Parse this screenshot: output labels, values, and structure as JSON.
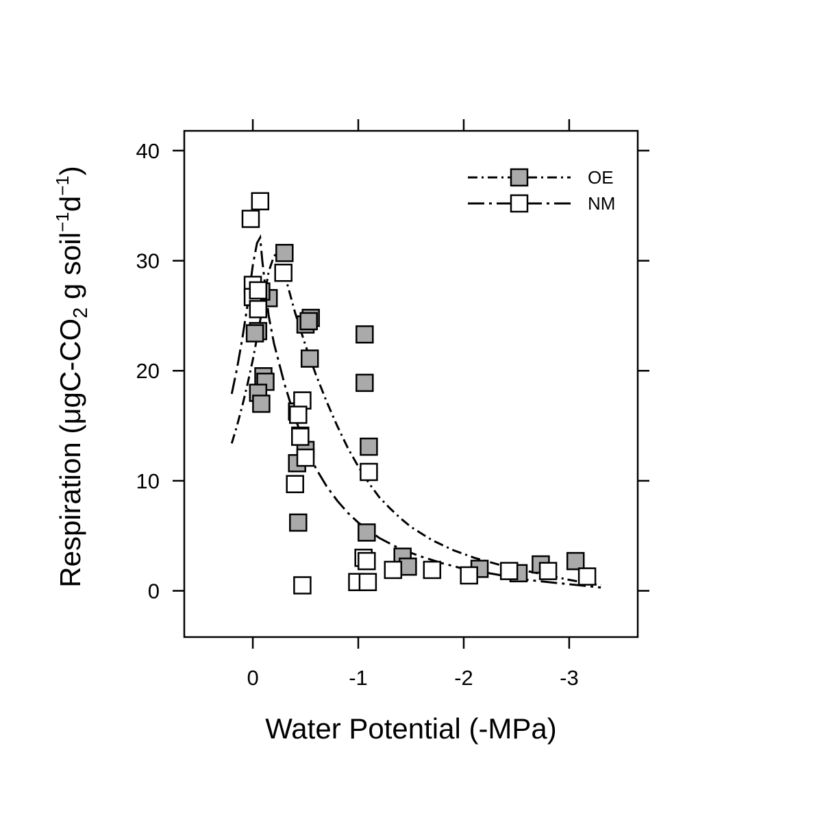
{
  "chart_data": {
    "type": "scatter",
    "xlabel": "Water Potential (-MPa)",
    "ylabel": {
      "prefix": "Respiration (μgC-CO",
      "sub": "2",
      "middle": " g soil",
      "sup1": "−1",
      "d": "d",
      "sup2": "−1",
      "suffix": ")"
    },
    "xlim": [
      0.65,
      -3.65
    ],
    "ylim": [
      -4.2,
      41.8
    ],
    "x_ticks": [
      0,
      -1,
      -2,
      -3
    ],
    "x_tick_labels": [
      "0",
      "-1",
      "-2",
      "-3"
    ],
    "y_ticks": [
      0,
      10,
      20,
      30,
      40
    ],
    "y_tick_labels": [
      "0",
      "10",
      "20",
      "30",
      "40"
    ],
    "grid": false,
    "legend_position": "top-right",
    "series": [
      {
        "name": "OE",
        "marker": "filled-square",
        "fill": "#aaaaaa",
        "points": [
          [
            -0.3,
            30.7
          ],
          [
            -0.15,
            26.6
          ],
          [
            -0.08,
            27.2
          ],
          [
            -0.05,
            23.6
          ],
          [
            -0.02,
            23.4
          ],
          [
            -0.1,
            19.5
          ],
          [
            -0.12,
            19.0
          ],
          [
            -0.05,
            18.0
          ],
          [
            -0.08,
            17.0
          ],
          [
            -0.5,
            24.2
          ],
          [
            -0.55,
            24.8
          ],
          [
            -0.53,
            24.5
          ],
          [
            -0.54,
            21.1
          ],
          [
            -0.42,
            16.3
          ],
          [
            -0.45,
            14.1
          ],
          [
            -0.5,
            12.8
          ],
          [
            -0.42,
            11.6
          ],
          [
            -0.43,
            6.2
          ],
          [
            -1.06,
            23.3
          ],
          [
            -1.06,
            18.9
          ],
          [
            -1.1,
            13.1
          ],
          [
            -1.08,
            5.3
          ],
          [
            -1.42,
            3.1
          ],
          [
            -1.47,
            2.2
          ],
          [
            -2.15,
            2.0
          ],
          [
            -2.52,
            1.6
          ],
          [
            -2.73,
            2.4
          ],
          [
            -3.06,
            2.7
          ]
        ]
      },
      {
        "name": "NM",
        "marker": "open-square",
        "fill": "#ffffff",
        "points": [
          [
            -0.07,
            35.4
          ],
          [
            0.02,
            33.8
          ],
          [
            -0.29,
            28.9
          ],
          [
            0.0,
            27.8
          ],
          [
            0.0,
            26.7
          ],
          [
            -0.05,
            27.3
          ],
          [
            -0.05,
            25.6
          ],
          [
            -0.47,
            17.3
          ],
          [
            -0.43,
            16.0
          ],
          [
            -0.45,
            14.0
          ],
          [
            -0.5,
            12.1
          ],
          [
            -0.4,
            9.7
          ],
          [
            -0.47,
            0.5
          ],
          [
            -1.1,
            10.8
          ],
          [
            -1.05,
            3.0
          ],
          [
            -1.08,
            2.7
          ],
          [
            -0.99,
            0.8
          ],
          [
            -1.09,
            0.8
          ],
          [
            -1.33,
            1.9
          ],
          [
            -1.7,
            1.9
          ],
          [
            -2.05,
            1.4
          ],
          [
            -2.43,
            1.8
          ],
          [
            -2.8,
            1.8
          ],
          [
            -3.17,
            1.3
          ]
        ]
      }
    ],
    "fit_curves": [
      {
        "series": "OE",
        "style": "dash-dot",
        "points": [
          [
            0.2,
            13.4
          ],
          [
            0.15,
            15.0
          ],
          [
            0.1,
            16.8
          ],
          [
            0.05,
            18.8
          ],
          [
            0.0,
            21.0
          ],
          [
            -0.05,
            23.5
          ],
          [
            -0.1,
            26.2
          ],
          [
            -0.15,
            29.0
          ],
          [
            -0.2,
            30.4
          ],
          [
            -0.24,
            30.8
          ],
          [
            -0.27,
            30.3
          ],
          [
            -0.3,
            28.8
          ],
          [
            -0.4,
            25.3
          ],
          [
            -0.5,
            22.3
          ],
          [
            -0.6,
            19.6
          ],
          [
            -0.7,
            17.2
          ],
          [
            -0.8,
            15.0
          ],
          [
            -0.9,
            13.0
          ],
          [
            -1.0,
            11.3
          ],
          [
            -1.1,
            9.8
          ],
          [
            -1.2,
            8.5
          ],
          [
            -1.3,
            7.5
          ],
          [
            -1.4,
            6.6
          ],
          [
            -1.5,
            5.8
          ],
          [
            -1.7,
            4.6
          ],
          [
            -1.9,
            3.7
          ],
          [
            -2.1,
            3.0
          ],
          [
            -2.4,
            2.2
          ],
          [
            -2.7,
            1.6
          ],
          [
            -3.0,
            1.0
          ],
          [
            -3.3,
            0.5
          ]
        ]
      },
      {
        "series": "NM",
        "style": "long-dash",
        "points": [
          [
            0.2,
            17.9
          ],
          [
            0.15,
            20.2
          ],
          [
            0.1,
            22.9
          ],
          [
            0.05,
            26.0
          ],
          [
            0.0,
            29.6
          ],
          [
            -0.04,
            31.6
          ],
          [
            -0.07,
            32.1
          ],
          [
            -0.09,
            30.0
          ],
          [
            -0.15,
            25.0
          ],
          [
            -0.2,
            22.5
          ],
          [
            -0.3,
            18.8
          ],
          [
            -0.4,
            15.7
          ],
          [
            -0.5,
            13.2
          ],
          [
            -0.6,
            11.1
          ],
          [
            -0.7,
            9.5
          ],
          [
            -0.8,
            8.2
          ],
          [
            -0.9,
            7.1
          ],
          [
            -1.0,
            6.2
          ],
          [
            -1.2,
            4.8
          ],
          [
            -1.4,
            3.8
          ],
          [
            -1.6,
            3.1
          ],
          [
            -1.8,
            2.5
          ],
          [
            -2.0,
            2.0
          ],
          [
            -2.3,
            1.5
          ],
          [
            -2.6,
            1.0
          ],
          [
            -3.0,
            0.6
          ],
          [
            -3.3,
            0.3
          ]
        ]
      }
    ]
  }
}
